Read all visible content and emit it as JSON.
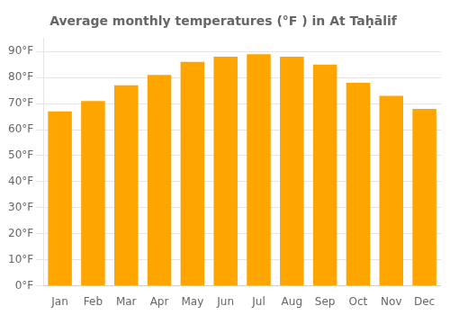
{
  "chart_data": {
    "type": "bar",
    "title": "Average monthly temperatures (°F ) in At Taḥālif",
    "categories": [
      "Jan",
      "Feb",
      "Mar",
      "Apr",
      "May",
      "Jun",
      "Jul",
      "Aug",
      "Sep",
      "Oct",
      "Nov",
      "Dec"
    ],
    "values": [
      67,
      71,
      77,
      81,
      86,
      88,
      89,
      88,
      85,
      78,
      73,
      68
    ],
    "color": "#FFA500",
    "ylim": [
      0,
      95
    ],
    "yticks": [
      {
        "value": 0,
        "label": "0°F"
      },
      {
        "value": 10,
        "label": "10°F"
      },
      {
        "value": 20,
        "label": "20°F"
      },
      {
        "value": 30,
        "label": "30°F"
      },
      {
        "value": 40,
        "label": "40°F"
      },
      {
        "value": 50,
        "label": "50°F"
      },
      {
        "value": 60,
        "label": "60°F"
      },
      {
        "value": 70,
        "label": "70°F"
      },
      {
        "value": 80,
        "label": "80°F"
      },
      {
        "value": 90,
        "label": "90°F"
      }
    ],
    "grid": true
  }
}
